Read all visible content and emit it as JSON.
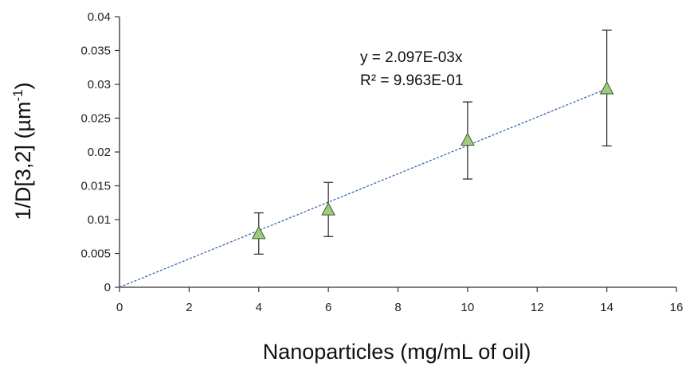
{
  "chart_data": {
    "type": "scatter",
    "title": "",
    "xlabel": "Nanoparticles (mg/mL of oil)",
    "ylabel": "1/D[3,2] (µm⁻¹)",
    "xlim": [
      0,
      16
    ],
    "ylim": [
      0,
      0.04
    ],
    "x_ticks": [
      "0",
      "2",
      "4",
      "6",
      "8",
      "10",
      "12",
      "14",
      "16"
    ],
    "y_ticks": [
      "0",
      "0.005",
      "0.01",
      "0.015",
      "0.02",
      "0.025",
      "0.03",
      "0.035",
      "0.04"
    ],
    "grid": false,
    "series": [
      {
        "marker": "triangle",
        "color": "#9fcb7e",
        "points": [
          {
            "x": 4,
            "y": 0.0079,
            "err_low": 0.0049,
            "err_high": 0.011
          },
          {
            "x": 6,
            "y": 0.0114,
            "err_low": 0.0075,
            "err_high": 0.0155
          },
          {
            "x": 10,
            "y": 0.0217,
            "err_low": 0.016,
            "err_high": 0.0274
          },
          {
            "x": 14,
            "y": 0.0293,
            "err_low": 0.0209,
            "err_high": 0.038
          }
        ]
      }
    ],
    "trendline": {
      "type": "linear",
      "slope": 0.002097,
      "intercept": 0,
      "color": "#3b63b8",
      "style": "dotted",
      "equation_label": "y = 2.097E-03x",
      "r2_label": "R² = 9.963E-01"
    }
  }
}
